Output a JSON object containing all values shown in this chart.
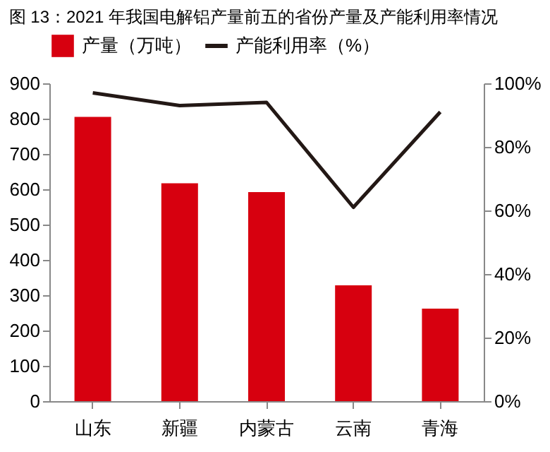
{
  "chart_data": {
    "type": "bar",
    "title": "图 13：2021 年我国电解铝产量前五的省份产量及产能利用率情况",
    "categories": [
      "山东",
      "新疆",
      "内蒙古",
      "云南",
      "青海"
    ],
    "series": [
      {
        "name": "产量（万吨）",
        "color": "#d7000f",
        "values": [
          805,
          617,
          592,
          328,
          262
        ]
      },
      {
        "name": "产能利用率（%）",
        "type": "line",
        "axis": "y2",
        "color": "#231815",
        "values": [
          97,
          93,
          94,
          61,
          91
        ]
      }
    ],
    "ylim": [
      0,
      900
    ],
    "yticks": [
      0,
      100,
      200,
      300,
      400,
      500,
      600,
      700,
      800,
      900
    ],
    "y2lim": [
      0,
      100
    ],
    "y2ticks": [
      {
        "value": 0,
        "label": "0%"
      },
      {
        "value": 20,
        "label": "20%"
      },
      {
        "value": 40,
        "label": "40%"
      },
      {
        "value": 60,
        "label": "60%"
      },
      {
        "value": 80,
        "label": "80%"
      },
      {
        "value": 100,
        "label": "100%"
      }
    ],
    "grid": false,
    "legend": "top",
    "marker": "none"
  }
}
